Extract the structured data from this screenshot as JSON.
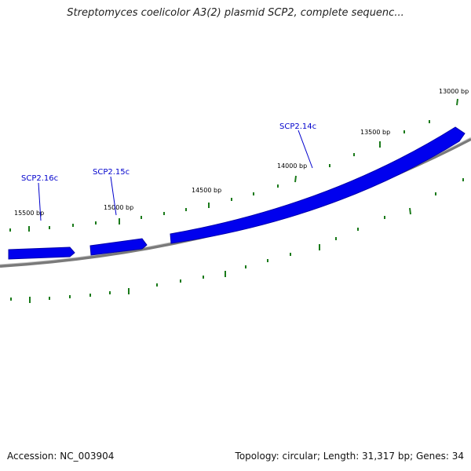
{
  "title": "Streptomyces coelicolor A3(2) plasmid SCP2, complete sequenc...",
  "footer": {
    "accession": "Accession: NC_003904",
    "summary": "Topology: circular; Length: 31,317 bp; Genes: 34"
  },
  "map": {
    "plasmid_length_bp": 31317,
    "ticks": [
      {
        "label": "13000 bp"
      },
      {
        "label": "13500 bp"
      },
      {
        "label": "14000 bp"
      },
      {
        "label": "14500 bp"
      },
      {
        "label": "15000 bp"
      },
      {
        "label": "15500 bp"
      }
    ],
    "genes": [
      {
        "label": "SCP2.14c",
        "strand": "reverse"
      },
      {
        "label": "SCP2.15c",
        "strand": "reverse"
      },
      {
        "label": "SCP2.16c",
        "strand": "reverse"
      }
    ],
    "colors": {
      "gene": "#0000ee",
      "gene_label": "#0000cc",
      "tick": "#1a7a1a",
      "backbone": "#7a7a7a"
    }
  }
}
